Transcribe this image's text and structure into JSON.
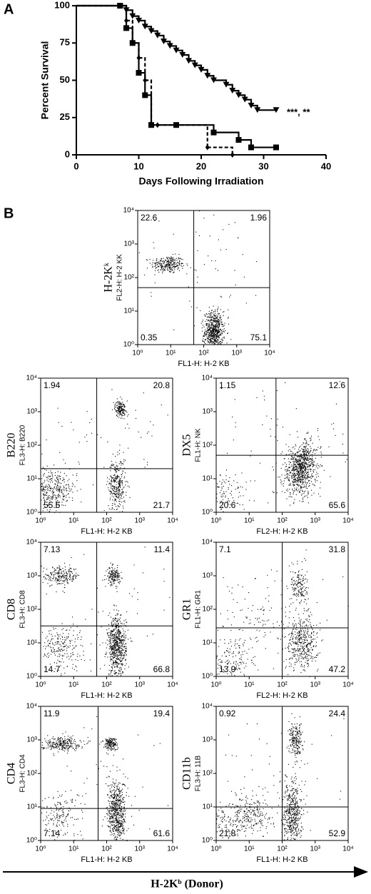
{
  "chart_data": [
    {
      "type": "survival",
      "panel_label": "A",
      "ylabel": "Percent Survival",
      "xlabel": "Days Following Irradiation",
      "annotation": "***, **",
      "xlim": [
        0,
        40
      ],
      "xticks": [
        0,
        10,
        20,
        30,
        40
      ],
      "ylim": [
        0,
        100
      ],
      "yticks": [
        0,
        25,
        50,
        75,
        100
      ],
      "series": [
        {
          "color": "#000000",
          "marker": "triangle",
          "dash": false,
          "x": [
            0,
            7,
            8,
            9,
            10,
            11,
            12,
            13,
            14,
            15,
            16,
            17,
            18,
            19,
            20,
            21,
            22,
            24,
            25,
            26,
            27,
            28,
            29,
            32
          ],
          "values": [
            100,
            100,
            97,
            93,
            90,
            86,
            83,
            80,
            76,
            73,
            70,
            67,
            63,
            60,
            57,
            53,
            50,
            47,
            43,
            40,
            37,
            33,
            30,
            30
          ]
        },
        {
          "color": "#000000",
          "marker": "square",
          "dash": false,
          "x": [
            0,
            7,
            8,
            9,
            10,
            11,
            12,
            16,
            22,
            26,
            28,
            32
          ],
          "values": [
            100,
            100,
            85,
            75,
            55,
            40,
            20,
            20,
            15,
            10,
            5,
            5
          ]
        },
        {
          "color": "#000000",
          "marker": "diamond",
          "dash": true,
          "x": [
            0,
            7,
            8,
            9,
            10,
            11,
            12,
            13,
            21,
            25
          ],
          "values": [
            100,
            100,
            90,
            75,
            65,
            50,
            20,
            20,
            5,
            0
          ]
        }
      ]
    },
    {
      "type": "quadrant",
      "panel_label": "B",
      "marker": "H-2Kᵏ",
      "channel": "FL2-H: H-2 KK",
      "xlabel": "FL1-H: H-2 KB",
      "values": [
        22.6,
        1.96,
        0.35,
        75.1
      ],
      "gate_x": 50,
      "gate_y": 50,
      "xscale": "log",
      "xlim": [
        1,
        10000
      ],
      "ylim": [
        1,
        10000
      ],
      "xticks": [
        {
          "value": 1,
          "label": "10⁰"
        },
        {
          "value": 10,
          "label": "10¹"
        },
        {
          "value": 100,
          "label": "10²"
        },
        {
          "value": 1000,
          "label": "10³"
        },
        {
          "value": 10000,
          "label": "10⁴"
        }
      ],
      "yticks": [
        {
          "value": 1,
          "label": "10⁰"
        },
        {
          "value": 10,
          "label": "10¹"
        },
        {
          "value": 100,
          "label": "10²"
        },
        {
          "value": 1000,
          "label": "10³"
        },
        {
          "value": 10000,
          "label": "10⁴"
        }
      ]
    },
    {
      "type": "quadrant",
      "marker": "B220",
      "channel": "FL3-H: B220",
      "xlabel": "FL1-H: H-2 KB",
      "values": [
        1.94,
        20.8,
        55.6,
        21.7
      ],
      "gate_x": 50,
      "gate_y": 20,
      "xscale": "log",
      "xlim": [
        1,
        10000
      ],
      "ylim": [
        1,
        10000
      ],
      "xticks": [
        {
          "value": 1,
          "label": "10⁰"
        },
        {
          "value": 10,
          "label": "10¹"
        },
        {
          "value": 100,
          "label": "10²"
        },
        {
          "value": 1000,
          "label": "10³"
        },
        {
          "value": 10000,
          "label": "10⁴"
        }
      ],
      "yticks": [
        {
          "value": 1,
          "label": "10⁰"
        },
        {
          "value": 10,
          "label": "10¹"
        },
        {
          "value": 100,
          "label": "10²"
        },
        {
          "value": 1000,
          "label": "10³"
        },
        {
          "value": 10000,
          "label": "10⁴"
        }
      ]
    },
    {
      "type": "quadrant",
      "marker": "DX5",
      "channel": "FL1-H: NK",
      "xlabel": "FL2-H: H-2 KB",
      "values": [
        1.15,
        12.6,
        20.6,
        65.6
      ],
      "gate_x": 65,
      "gate_y": 50,
      "xscale": "log",
      "xlim": [
        1,
        10000
      ],
      "ylim": [
        1,
        10000
      ],
      "xticks": [
        {
          "value": 1,
          "label": "10⁰"
        },
        {
          "value": 10,
          "label": "10¹"
        },
        {
          "value": 100,
          "label": "10²"
        },
        {
          "value": 1000,
          "label": "10³"
        },
        {
          "value": 10000,
          "label": "10⁴"
        }
      ],
      "yticks": [
        {
          "value": 1,
          "label": "10⁰"
        },
        {
          "value": 10,
          "label": "10¹"
        },
        {
          "value": 100,
          "label": "10²"
        },
        {
          "value": 1000,
          "label": "10³"
        },
        {
          "value": 10000,
          "label": "10⁴"
        }
      ]
    },
    {
      "type": "quadrant",
      "marker": "CD8",
      "channel": "FL3-H: CD8",
      "xlabel": "FL1-H: H-2 KB",
      "values": [
        7.13,
        11.4,
        14.7,
        66.8
      ],
      "gate_x": 50,
      "gate_y": 32,
      "xscale": "log",
      "xlim": [
        1,
        10000
      ],
      "ylim": [
        1,
        10000
      ],
      "xticks": [
        {
          "value": 1,
          "label": "10⁰"
        },
        {
          "value": 10,
          "label": "10¹"
        },
        {
          "value": 100,
          "label": "10²"
        },
        {
          "value": 1000,
          "label": "10³"
        },
        {
          "value": 10000,
          "label": "10⁴"
        }
      ],
      "yticks": [
        {
          "value": 1,
          "label": "10⁰"
        },
        {
          "value": 10,
          "label": "10¹"
        },
        {
          "value": 100,
          "label": "10²"
        },
        {
          "value": 1000,
          "label": "10³"
        },
        {
          "value": 10000,
          "label": "10⁴"
        }
      ]
    },
    {
      "type": "quadrant",
      "marker": "GR1",
      "channel": "FL1-H: GR1",
      "xlabel": "FL2-H: H-2 KB",
      "values": [
        7.1,
        31.8,
        13.9,
        47.2
      ],
      "gate_x": 100,
      "gate_y": 28,
      "xscale": "log",
      "xlim": [
        1,
        10000
      ],
      "ylim": [
        1,
        10000
      ],
      "xticks": [
        {
          "value": 1,
          "label": "10⁰"
        },
        {
          "value": 10,
          "label": "10¹"
        },
        {
          "value": 100,
          "label": "10²"
        },
        {
          "value": 1000,
          "label": "10³"
        },
        {
          "value": 10000,
          "label": "10⁴"
        }
      ],
      "yticks": [
        {
          "value": 1,
          "label": "10⁰"
        },
        {
          "value": 10,
          "label": "10¹"
        },
        {
          "value": 100,
          "label": "10²"
        },
        {
          "value": 1000,
          "label": "10³"
        },
        {
          "value": 10000,
          "label": "10⁴"
        }
      ]
    },
    {
      "type": "quadrant",
      "marker": "CD4",
      "channel": "FL3-H: CD4",
      "xlabel": "FL1-H: H-2 KB",
      "values": [
        11.9,
        19.4,
        7.14,
        61.6
      ],
      "gate_x": 55,
      "gate_y": 9,
      "xscale": "log",
      "xlim": [
        1,
        10000
      ],
      "ylim": [
        1,
        10000
      ],
      "xticks": [
        {
          "value": 1,
          "label": "10⁰"
        },
        {
          "value": 10,
          "label": "10¹"
        },
        {
          "value": 100,
          "label": "10²"
        },
        {
          "value": 1000,
          "label": "10³"
        },
        {
          "value": 10000,
          "label": "10⁴"
        }
      ],
      "yticks": [
        {
          "value": 1,
          "label": "10⁰"
        },
        {
          "value": 10,
          "label": "10¹"
        },
        {
          "value": 100,
          "label": "10²"
        },
        {
          "value": 1000,
          "label": "10³"
        },
        {
          "value": 10000,
          "label": "10⁴"
        }
      ]
    },
    {
      "type": "quadrant",
      "marker": "CD11b",
      "channel": "FL3-H: 11B",
      "xlabel": "FL1-H: H-2 KB",
      "values": [
        0.92,
        24.4,
        21.8,
        52.9
      ],
      "gate_x": 100,
      "gate_y": 10,
      "xscale": "log",
      "xlim": [
        1,
        10000
      ],
      "ylim": [
        1,
        10000
      ],
      "xticks": [
        {
          "value": 1,
          "label": "10⁰"
        },
        {
          "value": 10,
          "label": "10¹"
        },
        {
          "value": 100,
          "label": "10²"
        },
        {
          "value": 1000,
          "label": "10³"
        },
        {
          "value": 10000,
          "label": "10⁴"
        }
      ],
      "yticks": [
        {
          "value": 1,
          "label": "10⁰"
        },
        {
          "value": 10,
          "label": "10¹"
        },
        {
          "value": 100,
          "label": "10²"
        },
        {
          "value": 1000,
          "label": "10³"
        },
        {
          "value": 10000,
          "label": "10⁴"
        }
      ]
    }
  ],
  "footer_label": "H-2Kᵇ (Donor)"
}
